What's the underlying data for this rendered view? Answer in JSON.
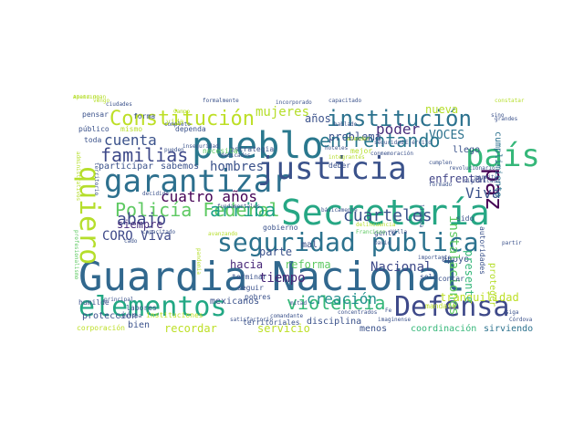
{
  "title": "",
  "colormap": [
    "#440154",
    "#3b528b",
    "#21918c",
    "#5ec962",
    "#fde725"
  ],
  "words": [
    {
      "text": "Guardia Nacional",
      "color": "#31688e",
      "vertical": false
    },
    {
      "text": "Secretaría",
      "color": "#26a784",
      "vertical": false
    },
    {
      "text": "pueblo",
      "color": "#2a788e",
      "vertical": false
    },
    {
      "text": "garantizar",
      "color": "#2d708e",
      "vertical": false
    },
    {
      "text": "justicia",
      "color": "#3b528b",
      "vertical": false
    },
    {
      "text": "país",
      "color": "#35b779",
      "vertical": false
    },
    {
      "text": "seguridad pública",
      "color": "#2c728e",
      "vertical": false
    },
    {
      "text": "elementos",
      "color": "#22a884",
      "vertical": false
    },
    {
      "text": "Defensa",
      "color": "#3e4989",
      "vertical": false
    },
    {
      "text": "institución",
      "color": "#2c728e",
      "vertical": false
    },
    {
      "text": "quiero",
      "color": "#b5de2b",
      "vertical": true
    },
    {
      "text": "Policía Federal",
      "color": "#5ec962",
      "vertical": false
    },
    {
      "text": "Constitución",
      "color": "#bddf26",
      "vertical": false
    },
    {
      "text": "familias",
      "color": "#3e4989",
      "vertical": false
    },
    {
      "text": "enfrentando",
      "color": "#2a788e",
      "vertical": false
    },
    {
      "text": "cuarteles",
      "color": "#3b528b",
      "vertical": false
    },
    {
      "text": "violencia",
      "color": "#35b779",
      "vertical": false
    },
    {
      "text": "paz",
      "color": "#440154",
      "vertical": true
    },
    {
      "text": "cuatro años",
      "color": "#440154",
      "vertical": false
    },
    {
      "text": "arriba",
      "color": "#20a386",
      "vertical": false
    },
    {
      "text": "abajo",
      "color": "#3e4989",
      "vertical": false
    },
    {
      "text": "cuenta",
      "color": "#3b528b",
      "vertical": false
    },
    {
      "text": "poder",
      "color": "#472d7b",
      "vertical": false
    },
    {
      "text": "VOCES",
      "color": "#2c728e",
      "vertical": false
    },
    {
      "text": "Viva",
      "color": "#3b528b",
      "vertical": false
    },
    {
      "text": "mujeres",
      "color": "#b5de2b",
      "vertical": false
    },
    {
      "text": "hombres",
      "color": "#3b528b",
      "vertical": false
    },
    {
      "text": "CORO Viva",
      "color": "#3e4989",
      "vertical": false
    },
    {
      "text": "Nacional",
      "color": "#3e4989",
      "vertical": false
    },
    {
      "text": "creación",
      "color": "#21918c",
      "vertical": false
    },
    {
      "text": "problema",
      "color": "#3b528b",
      "vertical": false
    },
    {
      "text": "reforma",
      "color": "#5ec962",
      "vertical": false
    },
    {
      "text": "siempre",
      "color": "#472d7b",
      "vertical": false
    },
    {
      "text": "enfrentar",
      "color": "#414487",
      "vertical": false
    },
    {
      "text": "tiempo",
      "color": "#482878",
      "vertical": false
    },
    {
      "text": "hacia",
      "color": "#482878",
      "vertical": false
    },
    {
      "text": "parte",
      "color": "#3b528b",
      "vertical": false
    },
    {
      "text": "años",
      "color": "#3b528b",
      "vertical": false
    },
    {
      "text": "nueva",
      "color": "#b5de2b",
      "vertical": false
    },
    {
      "text": "apoyo",
      "color": "#3b528b",
      "vertical": false
    },
    {
      "text": "instalaciones",
      "color": "#5ec962",
      "vertical": true
    },
    {
      "text": "cumplimiento",
      "color": "#2c728e",
      "vertical": true
    },
    {
      "text": "tranquilidad",
      "color": "#bddf26",
      "vertical": false
    },
    {
      "text": "servicio",
      "color": "#bddf26",
      "vertical": false
    },
    {
      "text": "recordar",
      "color": "#bddf26",
      "vertical": false
    },
    {
      "text": "disciplina",
      "color": "#3b528b",
      "vertical": false
    },
    {
      "text": "bien",
      "color": "#3b528b",
      "vertical": false
    },
    {
      "text": "menos",
      "color": "#3b528b",
      "vertical": false
    },
    {
      "text": "mal",
      "color": "#3b528b",
      "vertical": false
    },
    {
      "text": "sido",
      "color": "#3b528b",
      "vertical": false
    },
    {
      "text": "solo",
      "color": "#3b528b",
      "vertical": false
    },
    {
      "text": "protección",
      "color": "#3b528b",
      "vertical": false
    },
    {
      "text": "humilde",
      "color": "#3b528b",
      "vertical": false
    },
    {
      "text": "estrategia",
      "color": "#3b528b",
      "vertical": false
    },
    {
      "text": "participar",
      "color": "#3b528b",
      "vertical": false
    },
    {
      "text": "sabemos",
      "color": "#3b528b",
      "vertical": false
    },
    {
      "text": "llego",
      "color": "#3b528b",
      "vertical": false
    },
    {
      "text": "mejor",
      "color": "#b5de2b",
      "vertical": false
    },
    {
      "text": "gobierno",
      "color": "#3b528b",
      "vertical": false
    },
    {
      "text": "deber",
      "color": "#3b528b",
      "vertical": false
    },
    {
      "text": "terminar",
      "color": "#3b528b",
      "vertical": false
    },
    {
      "text": "seguir",
      "color": "#3b528b",
      "vertical": false
    },
    {
      "text": "pobres",
      "color": "#3b528b",
      "vertical": false
    },
    {
      "text": "mexicanos",
      "color": "#3b528b",
      "vertical": false
    },
    {
      "text": "instituciones",
      "color": "#bddf26",
      "vertical": false
    },
    {
      "text": "corporación",
      "color": "#bddf26",
      "vertical": false
    },
    {
      "text": "territoriales",
      "color": "#3b528b",
      "vertical": false
    },
    {
      "text": "contar",
      "color": "#3b528b",
      "vertical": false
    },
    {
      "text": "presente",
      "color": "#35b779",
      "vertical": true
    },
    {
      "text": "proteger",
      "color": "#b5de2b",
      "vertical": true
    },
    {
      "text": "autoridades",
      "color": "#3b528b",
      "vertical": true
    },
    {
      "text": "necesita",
      "color": "#5ec962",
      "vertical": false
    },
    {
      "text": "mandato",
      "color": "#bddf26",
      "vertical": false
    },
    {
      "text": "coordinación",
      "color": "#35b779",
      "vertical": false
    },
    {
      "text": "sirviendo",
      "color": "#2c728e",
      "vertical": false
    },
    {
      "text": "labores",
      "color": "#3b528b",
      "vertical": false
    },
    {
      "text": "pensar",
      "color": "#3b528b",
      "vertical": false
    },
    {
      "text": "toda",
      "color": "#3b528b",
      "vertical": false
    },
    {
      "text": "público",
      "color": "#3b528b",
      "vertical": false
    },
    {
      "text": "mismo",
      "color": "#b5de2b",
      "vertical": false
    },
    {
      "text": "forma",
      "color": "#3b528b",
      "vertical": false
    },
    {
      "text": "vida",
      "color": "#b5de2b",
      "vertical": false
    },
    {
      "text": "dependa",
      "color": "#3b528b",
      "vertical": false
    },
    {
      "text": "seguridad",
      "color": "#3b528b",
      "vertical": false
    },
    {
      "text": "Ejército",
      "color": "#3b528b",
      "vertical": false
    },
    {
      "text": "gente",
      "color": "#3b528b",
      "vertical": false
    },
    {
      "text": "David",
      "color": "#3b528b",
      "vertical": false
    },
    {
      "text": "siga",
      "color": "#3b528b",
      "vertical": false
    },
    {
      "text": "vengo",
      "color": "#b5de2b",
      "vertical": false
    },
    {
      "text": "ciudades",
      "color": "#3b528b",
      "vertical": false
    },
    {
      "text": "formalmente",
      "color": "#3b528b",
      "vertical": false
    },
    {
      "text": "capacitado",
      "color": "#3b528b",
      "vertical": false
    },
    {
      "text": "constatar",
      "color": "#b5de2b",
      "vertical": false
    },
    {
      "text": "sino",
      "color": "#3b528b",
      "vertical": false
    },
    {
      "text": "revolucionario",
      "color": "#3b528b",
      "vertical": false
    },
    {
      "text": "grandes",
      "color": "#3b528b",
      "vertical": false
    },
    {
      "text": "Villa",
      "color": "#3b528b",
      "vertical": false
    },
    {
      "text": "Francisco",
      "color": "#5ec962",
      "vertical": false
    },
    {
      "text": "principal",
      "color": "#3b528b",
      "vertical": false
    },
    {
      "text": "fundamentales",
      "color": "#3b528b",
      "vertical": false
    },
    {
      "text": "delincuencia",
      "color": "#b5de2b",
      "vertical": false
    },
    {
      "text": "importante",
      "color": "#3b528b",
      "vertical": false
    },
    {
      "text": "satisfactorio",
      "color": "#3b528b",
      "vertical": false
    },
    {
      "text": "imaginense",
      "color": "#3b528b",
      "vertical": false
    },
    {
      "text": "comandante",
      "color": "#3b528b",
      "vertical": false
    },
    {
      "text": "concentrados",
      "color": "#3b528b",
      "vertical": false
    },
    {
      "text": "contaba",
      "color": "#3b528b",
      "vertical": false
    },
    {
      "text": "significado",
      "color": "#3b528b",
      "vertical": false
    },
    {
      "text": "conmemoración",
      "color": "#3b528b",
      "vertical": false
    },
    {
      "text": "hoteles",
      "color": "#3b528b",
      "vertical": false
    },
    {
      "text": "atender",
      "color": "#b5de2b",
      "vertical": false
    },
    {
      "text": "hablado",
      "color": "#3b528b",
      "vertical": false
    },
    {
      "text": "permite",
      "color": "#3b528b",
      "vertical": false
    },
    {
      "text": "formado",
      "color": "#3b528b",
      "vertical": false
    },
    {
      "text": "cumplen",
      "color": "#3b528b",
      "vertical": false
    },
    {
      "text": "partir",
      "color": "#3b528b",
      "vertical": false
    },
    {
      "text": "llamada",
      "color": "#3b528b",
      "vertical": true
    },
    {
      "text": "administrativos",
      "color": "#b5de2b",
      "vertical": true
    },
    {
      "text": "profesionalismo",
      "color": "#5ec962",
      "vertical": true
    },
    {
      "text": "pandemia",
      "color": "#b5de2b",
      "vertical": true
    },
    {
      "text": "territorio",
      "color": "#3b528b",
      "vertical": true
    },
    {
      "text": "básicamente",
      "color": "#3b528b",
      "vertical": false
    },
    {
      "text": "mitad",
      "color": "#3b528b",
      "vertical": false
    },
    {
      "text": "cado",
      "color": "#3b528b",
      "vertical": false
    },
    {
      "text": "Fe",
      "color": "#3b528b",
      "vertical": false
    },
    {
      "text": "Córdova",
      "color": "#3b528b",
      "vertical": false
    },
    {
      "text": "decidido",
      "color": "#3b528b",
      "vertical": false
    },
    {
      "text": "pueden",
      "color": "#3b528b",
      "vertical": false
    },
    {
      "text": "Campo",
      "color": "#b5de2b",
      "vertical": false
    },
    {
      "text": "completo",
      "color": "#3b528b",
      "vertical": false
    },
    {
      "text": "dedicados",
      "color": "#3b528b",
      "vertical": false
    },
    {
      "text": "avanzando",
      "color": "#b5de2b",
      "vertical": false
    },
    {
      "text": "incorporado",
      "color": "#3b528b",
      "vertical": false
    },
    {
      "text": "integrantes",
      "color": "#b5de2b",
      "vertical": false
    },
    {
      "text": "capacitado",
      "color": "#3b528b",
      "vertical": false
    },
    {
      "text": "inseguridad",
      "color": "#3b528b",
      "vertical": false
    },
    {
      "text": "Apatzingán",
      "color": "#b5de2b",
      "vertical": false
    },
    {
      "text": "atendido",
      "color": "#b5de2b",
      "vertical": false
    }
  ]
}
